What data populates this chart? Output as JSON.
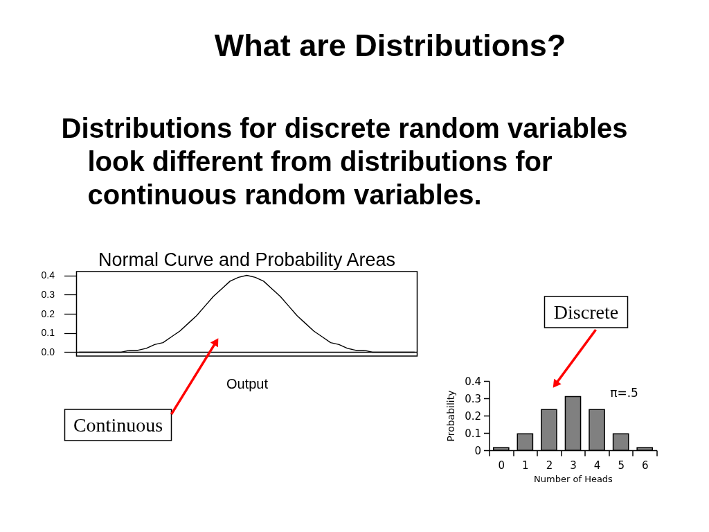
{
  "chart_data": [
    {
      "type": "other",
      "title": "What are Distributions?",
      "annotations": [
        "Distributions for discrete random variables look different from distributions for continuous random variables."
      ]
    },
    {
      "type": "line",
      "title": "Normal Curve and Probability Areas",
      "xlabel": "Output",
      "categories": [
        null,
        null,
        null,
        null,
        null,
        null,
        null,
        null,
        null,
        null,
        null,
        null,
        null,
        null,
        null,
        null,
        null,
        null,
        null,
        null,
        null,
        null,
        null,
        null,
        null,
        null,
        null,
        null,
        null,
        null,
        null,
        null,
        null,
        null,
        null,
        null,
        null,
        null,
        null,
        null,
        null
      ],
      "series": [
        {
          "color": "#000000",
          "values": [
            0,
            0,
            0,
            0,
            0,
            0,
            0.01,
            0.01,
            0.02,
            0.04,
            0.05,
            0.08,
            0.11,
            0.15,
            0.19,
            0.24,
            0.29,
            0.33,
            0.37,
            0.39,
            0.4,
            0.39,
            0.37,
            0.33,
            0.29,
            0.24,
            0.19,
            0.15,
            0.11,
            0.08,
            0.05,
            0.04,
            0.02,
            0.01,
            0.01,
            0,
            0,
            0,
            0,
            0,
            0
          ]
        }
      ],
      "ylim": [
        -0.02,
        0.42
      ],
      "yticks": [
        {
          "value": 0,
          "label": "0.0"
        },
        0.1,
        0.2,
        0.3,
        0.4
      ],
      "tick_labels": "y",
      "line_style": "solid",
      "ref_lines": [
        {
          "axis": "y",
          "value": 0,
          "color": "#000000"
        }
      ],
      "annotations": [
        "Continuous"
      ]
    },
    {
      "type": "bar",
      "xlabel": "Number of Heads",
      "ylabel": "Probability",
      "categories": [
        "0",
        "1",
        "2",
        "3",
        "4",
        "5",
        "6"
      ],
      "values": [
        0.015,
        0.095,
        0.235,
        0.31,
        0.235,
        0.095,
        0.015
      ],
      "color": "#808080",
      "ylim": [
        0,
        0.4
      ],
      "yticks": [
        0,
        0.1,
        0.2,
        0.3,
        0.4
      ],
      "annotations": [
        "Discrete",
        "π=.5"
      ]
    }
  ]
}
